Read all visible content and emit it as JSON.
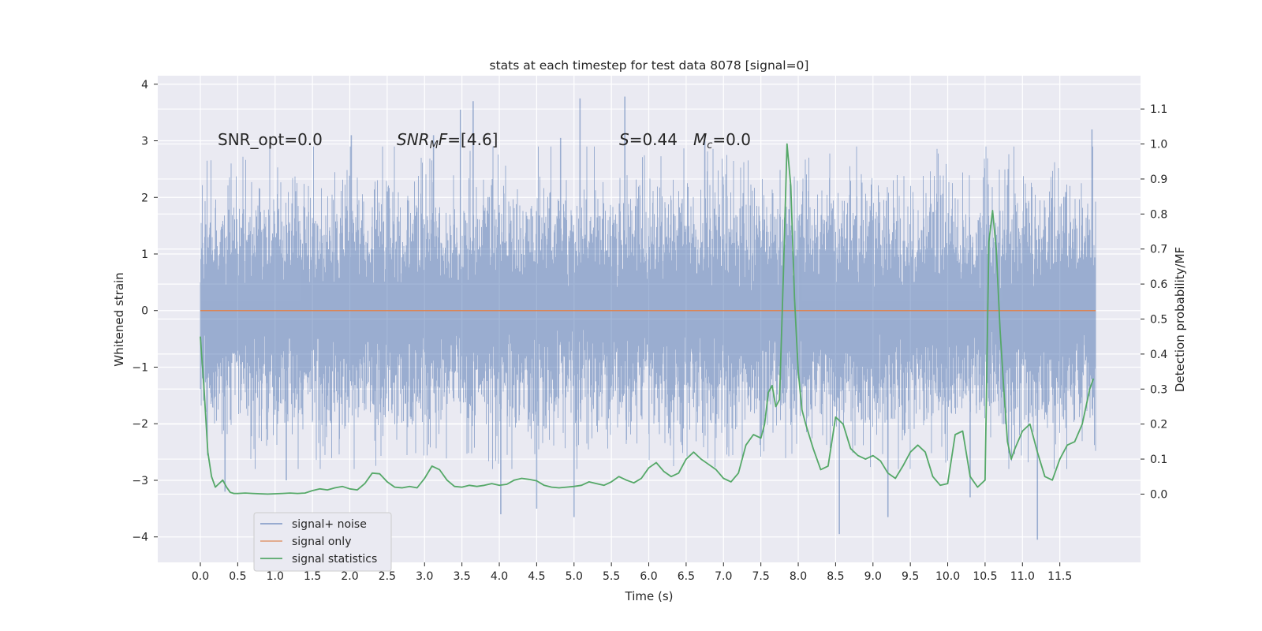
{
  "chart_data": {
    "type": "line",
    "title": "stats at each timestep for test data 8078 [signal=0]",
    "xlabel": "Time (s)",
    "ylabel": "Whitened strain",
    "y2label": "Detection probability/MF",
    "xlim": [
      -0.57,
      12.58
    ],
    "ylim": [
      -4.45,
      4.15
    ],
    "y2lim": [
      -0.195,
      1.195
    ],
    "xticks": [
      0.0,
      0.5,
      1.0,
      1.5,
      2.0,
      2.5,
      3.0,
      3.5,
      4.0,
      4.5,
      5.0,
      5.5,
      6.0,
      6.5,
      7.0,
      7.5,
      8.0,
      8.5,
      9.0,
      9.5,
      10.0,
      10.5,
      11.0,
      11.5
    ],
    "xtick_labels": [
      "0.0",
      "0.5",
      "1.0",
      "1.5",
      "2.0",
      "2.5",
      "3.0",
      "3.5",
      "4.0",
      "4.5",
      "5.0",
      "5.5",
      "6.0",
      "6.5",
      "7.0",
      "7.5",
      "8.0",
      "8.5",
      "9.0",
      "9.5",
      "10.0",
      "10.5",
      "11.0",
      "11.5"
    ],
    "yticks": [
      4,
      3,
      2,
      1,
      0,
      -1,
      -2,
      -3,
      -4
    ],
    "ytick_labels": [
      "4",
      "3",
      "2",
      "1",
      "0",
      "−1",
      "−2",
      "−3",
      "−4"
    ],
    "y2ticks": [
      1.1,
      1.0,
      0.9,
      0.8,
      0.7,
      0.6,
      0.5,
      0.4,
      0.3,
      0.2,
      0.1,
      0.0
    ],
    "y2tick_labels": [
      "1.1",
      "1.0",
      "0.9",
      "0.8",
      "0.7",
      "0.6",
      "0.5",
      "0.4",
      "0.3",
      "0.2",
      "0.1",
      "0.0"
    ],
    "grid": true,
    "series": [
      {
        "name": "signal+ noise",
        "color": "#4c72b0",
        "opacity": 0.5,
        "axis": "left",
        "description": "dense whitened-strain noise trace sampled over 0–12 s",
        "x_range": [
          0.0,
          11.98
        ],
        "extreme_points": [
          {
            "x": 0.33,
            "y": -3.2
          },
          {
            "x": 1.15,
            "y": -3.0
          },
          {
            "x": 2.02,
            "y": 3.1
          },
          {
            "x": 3.12,
            "y": 3.1
          },
          {
            "x": 3.48,
            "y": 3.55
          },
          {
            "x": 3.65,
            "y": 3.7
          },
          {
            "x": 4.02,
            "y": -3.6
          },
          {
            "x": 4.5,
            "y": -3.5
          },
          {
            "x": 4.82,
            "y": 3.05
          },
          {
            "x": 5.0,
            "y": -3.65
          },
          {
            "x": 5.08,
            "y": 3.75
          },
          {
            "x": 5.68,
            "y": 3.78
          },
          {
            "x": 6.75,
            "y": 3.1
          },
          {
            "x": 8.55,
            "y": -3.95
          },
          {
            "x": 9.2,
            "y": -3.65
          },
          {
            "x": 10.3,
            "y": -3.3
          },
          {
            "x": 11.2,
            "y": -4.05
          },
          {
            "x": 11.93,
            "y": 3.2
          }
        ]
      },
      {
        "name": "signal only",
        "color": "#dd8452",
        "axis": "left",
        "x": [
          0.0,
          11.98
        ],
        "y": [
          0.0,
          0.0
        ]
      },
      {
        "name": "signal statistics",
        "color": "#55a868",
        "axis": "right",
        "x": [
          0.0,
          0.05,
          0.1,
          0.15,
          0.2,
          0.25,
          0.3,
          0.35,
          0.4,
          0.45,
          0.5,
          0.6,
          0.7,
          0.8,
          0.9,
          1.0,
          1.1,
          1.2,
          1.3,
          1.4,
          1.5,
          1.6,
          1.7,
          1.8,
          1.9,
          2.0,
          2.1,
          2.2,
          2.3,
          2.4,
          2.5,
          2.6,
          2.7,
          2.8,
          2.9,
          3.0,
          3.1,
          3.2,
          3.3,
          3.4,
          3.5,
          3.6,
          3.7,
          3.8,
          3.9,
          4.0,
          4.1,
          4.2,
          4.3,
          4.4,
          4.5,
          4.6,
          4.7,
          4.8,
          4.9,
          5.0,
          5.1,
          5.2,
          5.3,
          5.4,
          5.5,
          5.6,
          5.7,
          5.8,
          5.9,
          6.0,
          6.1,
          6.2,
          6.3,
          6.4,
          6.5,
          6.6,
          6.7,
          6.8,
          6.9,
          7.0,
          7.1,
          7.2,
          7.3,
          7.4,
          7.5,
          7.55,
          7.6,
          7.65,
          7.7,
          7.75,
          7.8,
          7.85,
          7.9,
          7.95,
          8.0,
          8.05,
          8.1,
          8.2,
          8.3,
          8.4,
          8.5,
          8.6,
          8.7,
          8.8,
          8.9,
          9.0,
          9.1,
          9.2,
          9.3,
          9.4,
          9.5,
          9.6,
          9.7,
          9.8,
          9.9,
          10.0,
          10.1,
          10.2,
          10.3,
          10.4,
          10.5,
          10.55,
          10.6,
          10.65,
          10.7,
          10.75,
          10.8,
          10.85,
          10.9,
          11.0,
          11.1,
          11.2,
          11.3,
          11.4,
          11.5,
          11.6,
          11.7,
          11.8,
          11.9,
          11.95
        ],
        "y": [
          0.45,
          0.3,
          0.12,
          0.05,
          0.02,
          0.03,
          0.04,
          0.02,
          0.005,
          0.002,
          0.002,
          0.003,
          0.002,
          0.001,
          0.0,
          0.001,
          0.002,
          0.003,
          0.002,
          0.003,
          0.01,
          0.015,
          0.012,
          0.018,
          0.022,
          0.015,
          0.012,
          0.03,
          0.06,
          0.058,
          0.035,
          0.02,
          0.018,
          0.022,
          0.018,
          0.045,
          0.08,
          0.07,
          0.04,
          0.022,
          0.02,
          0.025,
          0.022,
          0.025,
          0.03,
          0.025,
          0.028,
          0.04,
          0.045,
          0.042,
          0.038,
          0.025,
          0.02,
          0.018,
          0.02,
          0.022,
          0.025,
          0.035,
          0.03,
          0.025,
          0.035,
          0.05,
          0.04,
          0.032,
          0.045,
          0.075,
          0.09,
          0.065,
          0.05,
          0.06,
          0.1,
          0.12,
          0.1,
          0.085,
          0.07,
          0.045,
          0.035,
          0.06,
          0.14,
          0.17,
          0.16,
          0.2,
          0.29,
          0.31,
          0.25,
          0.27,
          0.62,
          1.0,
          0.88,
          0.56,
          0.35,
          0.24,
          0.2,
          0.13,
          0.07,
          0.08,
          0.22,
          0.2,
          0.13,
          0.11,
          0.1,
          0.11,
          0.095,
          0.06,
          0.045,
          0.08,
          0.12,
          0.14,
          0.12,
          0.05,
          0.025,
          0.03,
          0.17,
          0.18,
          0.05,
          0.02,
          0.04,
          0.72,
          0.81,
          0.7,
          0.47,
          0.3,
          0.15,
          0.1,
          0.13,
          0.18,
          0.2,
          0.12,
          0.05,
          0.04,
          0.1,
          0.14,
          0.15,
          0.2,
          0.3,
          0.33
        ]
      }
    ],
    "annotations": [
      {
        "id": "snr_opt",
        "text": "SNR_opt=0.0",
        "x": 0.2,
        "y": 2.9
      },
      {
        "id": "snr_mf",
        "text": "SNRₘF=[4.6]",
        "x": 2.6,
        "y": 2.9
      },
      {
        "id": "s_value",
        "text": "S=0.44",
        "x": 5.6,
        "y": 2.9
      },
      {
        "id": "mc_value",
        "text": "Mc=0.0",
        "x": 6.6,
        "y": 2.9
      }
    ],
    "legend": {
      "placement": "lower-left",
      "entries": [
        {
          "label": "signal+ noise",
          "color": "#4c72b0"
        },
        {
          "label": "signal only",
          "color": "#dd8452"
        },
        {
          "label": "signal statistics",
          "color": "#55a868"
        }
      ]
    }
  }
}
